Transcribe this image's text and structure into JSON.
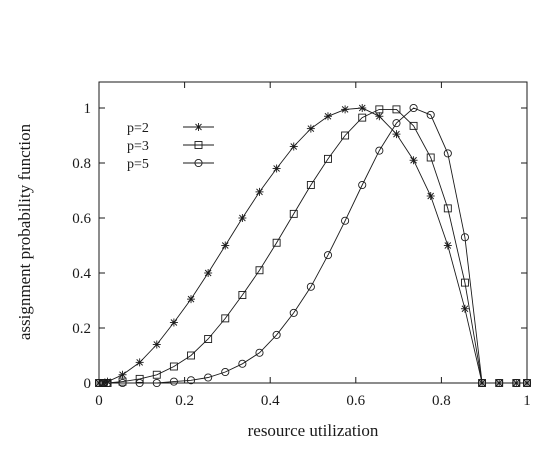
{
  "chart_data": {
    "type": "line",
    "xlabel": "resource utilization",
    "ylabel": "assignment probability function",
    "xlim": [
      0,
      1
    ],
    "ylim": [
      0,
      1.05
    ],
    "xticks": [
      0,
      0.2,
      0.4,
      0.6,
      0.8,
      1
    ],
    "xtick_labels": [
      "0",
      "0.2",
      "0.4",
      "0.6",
      "0.8",
      "1"
    ],
    "yticks": [
      0,
      0.2,
      0.4,
      0.6,
      0.8,
      1
    ],
    "ytick_labels": [
      "0",
      "0.2",
      "0.4",
      "0.6",
      "0.8",
      "1"
    ],
    "grid": false,
    "legend_position": "top-left",
    "series": [
      {
        "name": "p=2",
        "marker": "asterisk",
        "x": [
          0,
          0.01,
          0.02,
          0.055,
          0.095,
          0.135,
          0.175,
          0.215,
          0.255,
          0.295,
          0.335,
          0.375,
          0.415,
          0.455,
          0.495,
          0.535,
          0.575,
          0.615,
          0.655,
          0.695,
          0.735,
          0.775,
          0.815,
          0.855,
          0.895,
          0.935,
          0.975,
          1
        ],
        "y": [
          0,
          0,
          0.005,
          0.03,
          0.075,
          0.14,
          0.22,
          0.305,
          0.4,
          0.5,
          0.6,
          0.695,
          0.78,
          0.86,
          0.925,
          0.97,
          0.995,
          1.0,
          0.97,
          0.905,
          0.81,
          0.68,
          0.5,
          0.27,
          0,
          0,
          0,
          0
        ]
      },
      {
        "name": "p=3",
        "marker": "square",
        "x": [
          0,
          0.01,
          0.02,
          0.055,
          0.095,
          0.135,
          0.175,
          0.215,
          0.255,
          0.295,
          0.335,
          0.375,
          0.415,
          0.455,
          0.495,
          0.535,
          0.575,
          0.615,
          0.655,
          0.695,
          0.735,
          0.775,
          0.815,
          0.855,
          0.895,
          0.935,
          0.975,
          1
        ],
        "y": [
          0,
          0,
          0,
          0.005,
          0.015,
          0.03,
          0.06,
          0.1,
          0.16,
          0.235,
          0.32,
          0.41,
          0.51,
          0.615,
          0.72,
          0.815,
          0.9,
          0.965,
          0.995,
          0.995,
          0.935,
          0.82,
          0.635,
          0.365,
          0,
          0,
          0,
          0
        ]
      },
      {
        "name": "p=5",
        "marker": "circle",
        "x": [
          0,
          0.01,
          0.02,
          0.055,
          0.095,
          0.135,
          0.175,
          0.215,
          0.255,
          0.295,
          0.335,
          0.375,
          0.415,
          0.455,
          0.495,
          0.535,
          0.575,
          0.615,
          0.655,
          0.695,
          0.735,
          0.775,
          0.815,
          0.855,
          0.895,
          0.935,
          0.975,
          1
        ],
        "y": [
          0,
          0,
          0,
          0,
          0,
          0,
          0.005,
          0.01,
          0.02,
          0.04,
          0.07,
          0.11,
          0.175,
          0.255,
          0.35,
          0.465,
          0.59,
          0.72,
          0.845,
          0.945,
          1.0,
          0.975,
          0.835,
          0.53,
          0,
          0,
          0,
          0
        ]
      }
    ]
  }
}
